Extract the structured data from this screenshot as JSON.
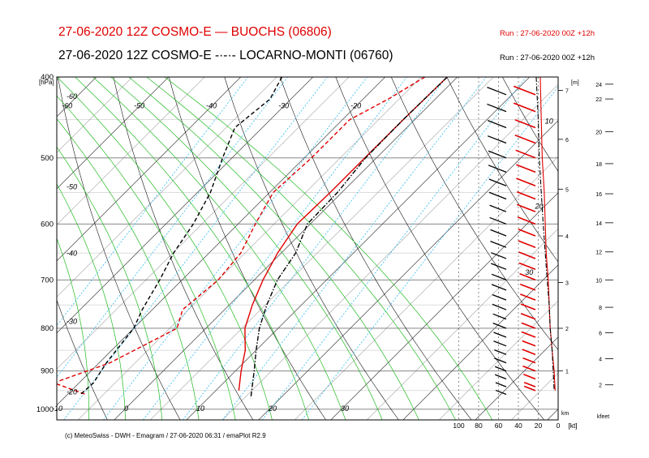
{
  "header": {
    "line1": "27-06-2020 12Z COSMO-E — BUOCHS (06806)",
    "line2": "27-06-2020 12Z COSMO-E  -·-·- LOCARNO-MONTI (06760)",
    "run1": "Run : 27-06-2020 00Z +12h",
    "run2": "Run : 27-06-2020 00Z +12h"
  },
  "footer": "(c) MeteoSwiss - DWH - Emagram / 27-06-2020  06:31  / emaPlot R2.9",
  "colors": {
    "buochs": "#e00000",
    "locarno": "#000000",
    "dry_adiabat": "#000000",
    "moist_adiabat": "#22bb22",
    "mixing_ratio": "#33bbee"
  },
  "chart_data": {
    "type": "line",
    "title": "Emagram",
    "ylabel": "[hPa]",
    "pressure_ticks": [
      "400",
      "500",
      "600",
      "700",
      "800",
      "900",
      "1000"
    ],
    "pressure_values": [
      400,
      500,
      600,
      700,
      800,
      900,
      1000
    ],
    "ylim": [
      400,
      1030
    ],
    "xlim": [
      -45,
      35
    ],
    "temp_ticks_bottom": [
      "-20",
      "-10",
      "0",
      "10",
      "20",
      "30"
    ],
    "temp_ticks_bottom_values": [
      -20,
      -10,
      0,
      10,
      20,
      30
    ],
    "temp_ticks_top": [
      "-60",
      "-50",
      "-40",
      "-30",
      "-20"
    ],
    "temp_ticks_top_values": [
      -60,
      -50,
      -40,
      -30,
      -20
    ],
    "adiabat_labels_left": [
      "-60",
      "-50",
      "-40",
      "-30",
      "-20"
    ],
    "adiabat_labels_left_p": [
      425,
      545,
      655,
      790,
      960
    ],
    "height_km_ticks": [
      "1",
      "2",
      "3",
      "4",
      "5",
      "6",
      "7"
    ],
    "height_km_values": [
      1,
      2,
      3,
      4,
      5,
      6,
      7
    ],
    "height_km_p": [
      900,
      800,
      705,
      620,
      545,
      475,
      415
    ],
    "km_label": "[m]",
    "km_unit": "km",
    "height_kfeet_ticks": [
      "2",
      "4",
      "6",
      "8",
      "10",
      "12",
      "14",
      "16",
      "18",
      "20",
      "22",
      "24"
    ],
    "height_kfeet_values": [
      2,
      4,
      6,
      8,
      10,
      12,
      14,
      16,
      18,
      20,
      22,
      24
    ],
    "height_kfeet_p": [
      935,
      870,
      810,
      755,
      700,
      648,
      598,
      552,
      508,
      465,
      425,
      408
    ],
    "kfeet_label": "kfeet",
    "wind_ticks": [
      "100",
      "80",
      "60",
      "40",
      "20",
      "0"
    ],
    "wind_tick_values": [
      100,
      80,
      60,
      40,
      20,
      0
    ],
    "wind_unit": "[kt]",
    "wind_profile_labels": [
      "10",
      "20",
      "30"
    ],
    "wind_profile_labels_values": [
      10,
      20,
      30
    ],
    "wind_profile_labels_p": [
      455,
      575,
      690
    ],
    "series": [
      {
        "name": "BUOCHS (06806)",
        "kind": "temperature",
        "style": "solid",
        "points": [
          [
            -11.4,
            400
          ],
          [
            -11.6,
            450
          ],
          [
            -11.6,
            500
          ],
          [
            -11.6,
            550
          ],
          [
            -11.8,
            600
          ],
          [
            -10.5,
            650
          ],
          [
            -8.8,
            700
          ],
          [
            -6.8,
            750
          ],
          [
            -4.6,
            800
          ],
          [
            -1.5,
            850
          ],
          [
            0.8,
            900
          ],
          [
            3.2,
            950
          ]
        ]
      },
      {
        "name": "BUOCHS (06806)",
        "kind": "dewpoint",
        "style": "dashed",
        "points": [
          [
            -14.5,
            400
          ],
          [
            -16.5,
            425
          ],
          [
            -19.0,
            450
          ],
          [
            -19.0,
            500
          ],
          [
            -19.5,
            550
          ],
          [
            -17.6,
            600
          ],
          [
            -15.6,
            650
          ],
          [
            -15.0,
            700
          ],
          [
            -15.8,
            760
          ],
          [
            -14.0,
            800
          ],
          [
            -18.5,
            880
          ],
          [
            -23.5,
            930
          ],
          [
            -17.5,
            960
          ]
        ]
      },
      {
        "name": "LOCARNO-MONTI (06760)",
        "kind": "temperature",
        "style": "dashdot",
        "points": [
          [
            -11.4,
            400
          ],
          [
            -11.6,
            450
          ],
          [
            -11.5,
            500
          ],
          [
            -10.6,
            550
          ],
          [
            -10.4,
            600
          ],
          [
            -8.0,
            650
          ],
          [
            -6.8,
            700
          ],
          [
            -4.8,
            750
          ],
          [
            -2.6,
            800
          ],
          [
            0.0,
            850
          ],
          [
            2.6,
            900
          ],
          [
            5.9,
            970
          ]
        ]
      },
      {
        "name": "LOCARNO-MONTI (06760)",
        "kind": "dewpoint",
        "style": "dashed",
        "points": [
          [
            -34.3,
            400
          ],
          [
            -32.9,
            425
          ],
          [
            -33.8,
            460
          ],
          [
            -31.3,
            500
          ],
          [
            -28.2,
            550
          ],
          [
            -26.2,
            600
          ],
          [
            -24.9,
            650
          ],
          [
            -23.1,
            700
          ],
          [
            -21.4,
            760
          ],
          [
            -20.0,
            800
          ],
          [
            -19.0,
            880
          ],
          [
            -18.0,
            930
          ],
          [
            -18.2,
            960
          ]
        ]
      },
      {
        "name": "BUOCHS (06806)",
        "kind": "wind_speed_kt",
        "style": "solid",
        "points": [
          [
            18,
            400
          ],
          [
            17,
            450
          ],
          [
            16,
            500
          ],
          [
            14,
            550
          ],
          [
            13,
            600
          ],
          [
            12,
            650
          ],
          [
            10,
            700
          ],
          [
            9,
            750
          ],
          [
            8,
            800
          ],
          [
            6,
            850
          ],
          [
            4,
            900
          ],
          [
            3,
            950
          ]
        ]
      },
      {
        "name": "LOCARNO-MONTI (06760)",
        "kind": "wind_speed_kt",
        "style": "dashdot",
        "points": [
          [
            22,
            400
          ],
          [
            20,
            450
          ],
          [
            19,
            500
          ],
          [
            17,
            550
          ],
          [
            15,
            600
          ],
          [
            13,
            650
          ],
          [
            11,
            700
          ],
          [
            9,
            750
          ],
          [
            8,
            800
          ],
          [
            6,
            850
          ],
          [
            5,
            900
          ],
          [
            4,
            950
          ]
        ]
      }
    ],
    "wind_barbs": {
      "buochs_p": [
        420,
        440,
        460,
        480,
        500,
        520,
        540,
        560,
        580,
        600,
        620,
        640,
        660,
        680,
        700,
        720,
        740,
        760,
        780,
        800,
        820,
        840,
        860,
        880,
        900,
        920,
        940,
        950
      ],
      "buochs_speed_kt": [
        22,
        22,
        20,
        20,
        19,
        18,
        18,
        17,
        17,
        16,
        15,
        15,
        14,
        14,
        13,
        12,
        12,
        11,
        11,
        10,
        10,
        9,
        9,
        8,
        8,
        7,
        6,
        6
      ],
      "locarno_p": [
        420,
        440,
        460,
        480,
        500,
        520,
        540,
        560,
        580,
        600,
        620,
        640,
        660,
        680,
        700,
        720,
        740,
        760,
        780,
        800,
        820,
        840,
        860,
        880,
        900,
        920,
        940,
        960
      ],
      "locarno_speed_kt": [
        18,
        18,
        17,
        17,
        16,
        16,
        15,
        15,
        14,
        14,
        13,
        13,
        12,
        12,
        11,
        11,
        10,
        10,
        9,
        9,
        8,
        8,
        7,
        7,
        6,
        6,
        5,
        5
      ]
    },
    "grid": true,
    "legend": "top"
  }
}
